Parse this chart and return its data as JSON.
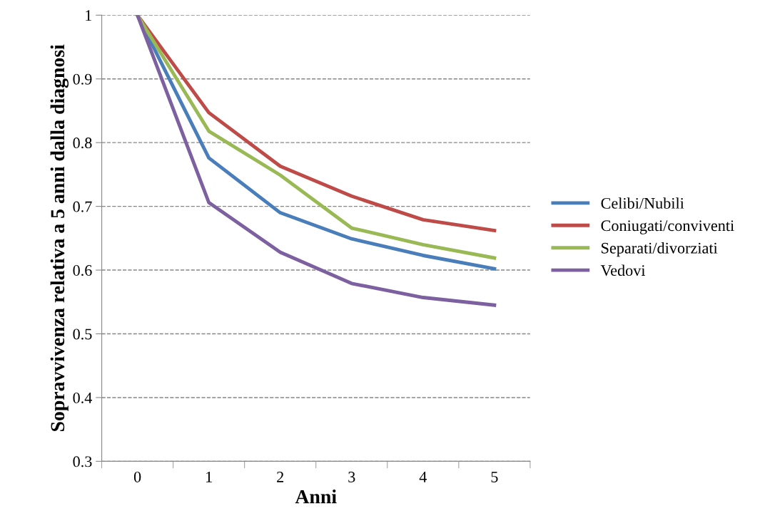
{
  "chart_data": {
    "type": "line",
    "xlabel": "Anni",
    "ylabel": "Sopravvivenza relativa a 5 anni dalla diagnosi",
    "categories": [
      "0",
      "1",
      "2",
      "3",
      "4",
      "5"
    ],
    "series": [
      {
        "name": "Celibi/Nubili",
        "color": "#4a7ebb",
        "values": [
          1,
          0.776,
          0.69,
          0.649,
          0.623,
          0.602
        ]
      },
      {
        "name": "Coniugati/conviventi",
        "color": "#be4b48",
        "values": [
          1,
          0.847,
          0.763,
          0.716,
          0.679,
          0.662
        ]
      },
      {
        "name": "Separati/divorziati",
        "color": "#98b954",
        "values": [
          1,
          0.818,
          0.749,
          0.666,
          0.64,
          0.619
        ]
      },
      {
        "name": "Vedovi",
        "color": "#7d60a0",
        "values": [
          1,
          0.706,
          0.628,
          0.579,
          0.557,
          0.545
        ]
      }
    ],
    "ylim": [
      0.3,
      1
    ],
    "yticks": [
      0.3,
      0.4,
      0.5,
      0.6,
      0.7,
      0.8,
      0.9,
      1
    ],
    "grid": "y",
    "legend": "right",
    "marker": "none",
    "line_style": "solid"
  }
}
